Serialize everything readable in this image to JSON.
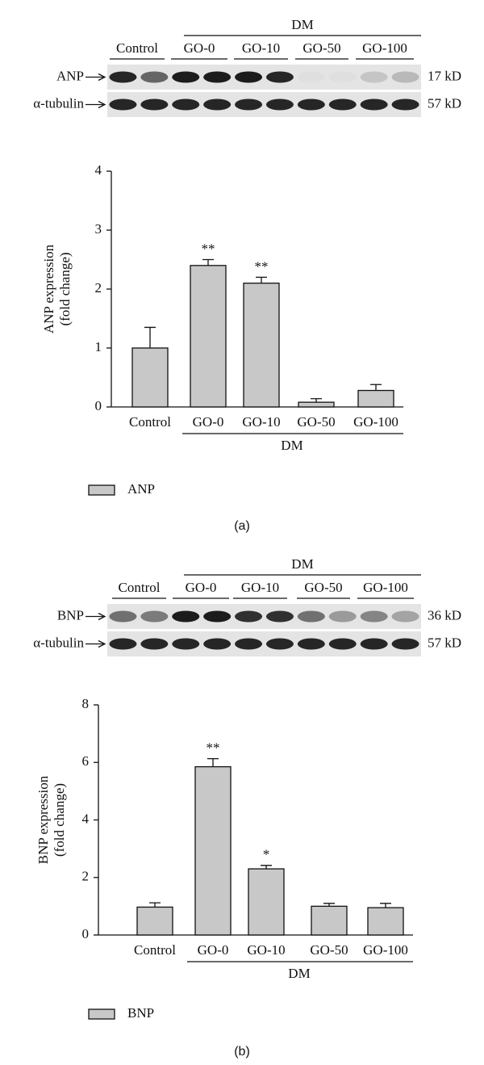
{
  "chart_data": [
    {
      "type": "bar",
      "categories": [
        "Control",
        "GO-0",
        "GO-10",
        "GO-50",
        "GO-100"
      ],
      "series": [
        {
          "name": "ANP",
          "color": "#c8c8c8",
          "values": [
            1.0,
            2.4,
            2.1,
            0.08,
            0.28
          ],
          "errors": [
            0.35,
            0.1,
            0.1,
            0.06,
            0.1
          ]
        }
      ],
      "markers": [
        null,
        "**",
        "**",
        null,
        null
      ],
      "ylabel": [
        "ANP expression",
        "(fold change)"
      ],
      "group_label": "DM",
      "ylim": [
        0,
        4
      ],
      "yticks": [
        0,
        1,
        2,
        3,
        4
      ],
      "caption": "(a)"
    },
    {
      "type": "bar",
      "categories": [
        "Control",
        "GO-0",
        "GO-10",
        "GO-50",
        "GO-100"
      ],
      "series": [
        {
          "name": "BNP",
          "color": "#c8c8c8",
          "values": [
            0.97,
            5.85,
            2.3,
            1.0,
            0.95
          ],
          "errors": [
            0.15,
            0.28,
            0.12,
            0.1,
            0.15
          ]
        }
      ],
      "markers": [
        null,
        "**",
        "*",
        null,
        null
      ],
      "ylabel": [
        "BNP expression",
        "(fold change)"
      ],
      "group_label": "DM",
      "ylim": [
        0,
        8
      ],
      "yticks": [
        0,
        2,
        4,
        6,
        8
      ],
      "caption": "(b)"
    }
  ],
  "blots": [
    {
      "group_label": "DM",
      "lanes": [
        "Control",
        "GO-0",
        "GO-10",
        "GO-50",
        "GO-100"
      ],
      "rows": [
        {
          "label": "ANP",
          "size": "17 kD"
        },
        {
          "label": "α-tubulin",
          "size": "57 kD"
        }
      ]
    },
    {
      "group_label": "DM",
      "lanes": [
        "Control",
        "GO-0",
        "GO-10",
        "GO-50",
        "GO-100"
      ],
      "rows": [
        {
          "label": "BNP",
          "size": "36 kD"
        },
        {
          "label": "α-tubulin",
          "size": "57 kD"
        }
      ]
    }
  ]
}
